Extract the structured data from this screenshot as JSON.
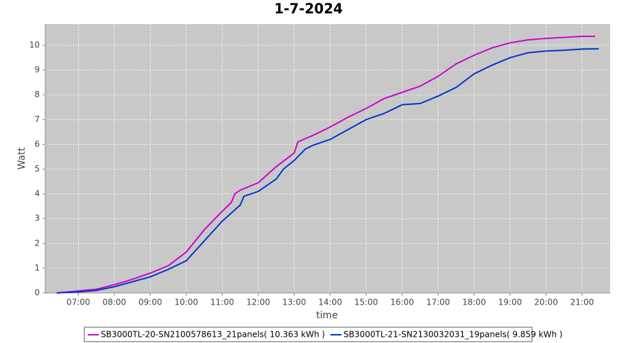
{
  "chart_data": {
    "type": "line",
    "title": "1-7-2024",
    "x_label": "time",
    "y_label": "Watt",
    "xlim": [
      6.08,
      21.78
    ],
    "xticks": [
      {
        "value": 7,
        "label": "07:00"
      },
      {
        "value": 8,
        "label": "08:00"
      },
      {
        "value": 9,
        "label": "09:00"
      },
      {
        "value": 10,
        "label": "10:00"
      },
      {
        "value": 11,
        "label": "11:00"
      },
      {
        "value": 12,
        "label": "12:00"
      },
      {
        "value": 13,
        "label": "13:00"
      },
      {
        "value": 14,
        "label": "14:00"
      },
      {
        "value": 15,
        "label": "15:00"
      },
      {
        "value": 16,
        "label": "16:00"
      },
      {
        "value": 17,
        "label": "17:00"
      },
      {
        "value": 18,
        "label": "18:00"
      },
      {
        "value": 19,
        "label": "19:00"
      },
      {
        "value": 20,
        "label": "20:00"
      },
      {
        "value": 21,
        "label": "21:00"
      }
    ],
    "ylim": [
      0,
      10.86
    ],
    "yticks": [
      0,
      1,
      2,
      3,
      4,
      5,
      6,
      7,
      8,
      9,
      10
    ],
    "grid": true,
    "series": [
      {
        "name": "SB3000TL-20-SN2100578613_21panels( 10.363 kWh )",
        "color": "#cc00cc",
        "x": [
          6.4,
          7.0,
          7.5,
          8.0,
          8.5,
          9.0,
          9.5,
          10.0,
          10.5,
          11.0,
          11.25,
          11.35,
          11.5,
          12.0,
          12.5,
          13.0,
          13.1,
          13.5,
          14.0,
          14.5,
          15.0,
          15.5,
          16.0,
          16.5,
          17.0,
          17.5,
          18.0,
          18.5,
          19.0,
          19.5,
          20.0,
          20.5,
          21.0,
          21.36
        ],
        "values": [
          0,
          0.08,
          0.15,
          0.33,
          0.55,
          0.8,
          1.1,
          1.65,
          2.55,
          3.3,
          3.65,
          4.0,
          4.15,
          4.45,
          5.1,
          5.65,
          6.1,
          6.35,
          6.7,
          7.1,
          7.45,
          7.85,
          8.1,
          8.35,
          8.75,
          9.25,
          9.6,
          9.9,
          10.1,
          10.22,
          10.28,
          10.32,
          10.36,
          10.363
        ]
      },
      {
        "name": "SB3000TL-21-SN2130032031_19panels( 9.859 kWh )",
        "color": "#0033cc",
        "x": [
          6.4,
          7.0,
          7.5,
          8.0,
          8.5,
          9.0,
          9.5,
          10.0,
          10.5,
          11.0,
          11.5,
          11.6,
          12.0,
          12.5,
          12.7,
          13.0,
          13.3,
          13.5,
          14.0,
          14.5,
          15.0,
          15.5,
          16.0,
          16.5,
          17.0,
          17.5,
          18.0,
          18.5,
          19.0,
          19.5,
          20.0,
          20.5,
          21.0,
          21.46
        ],
        "values": [
          0,
          0.04,
          0.1,
          0.25,
          0.45,
          0.65,
          0.95,
          1.3,
          2.1,
          2.9,
          3.55,
          3.9,
          4.1,
          4.6,
          5.0,
          5.35,
          5.8,
          5.95,
          6.2,
          6.6,
          7.0,
          7.25,
          7.6,
          7.65,
          7.95,
          8.3,
          8.85,
          9.2,
          9.5,
          9.7,
          9.77,
          9.8,
          9.85,
          9.859
        ]
      }
    ]
  }
}
